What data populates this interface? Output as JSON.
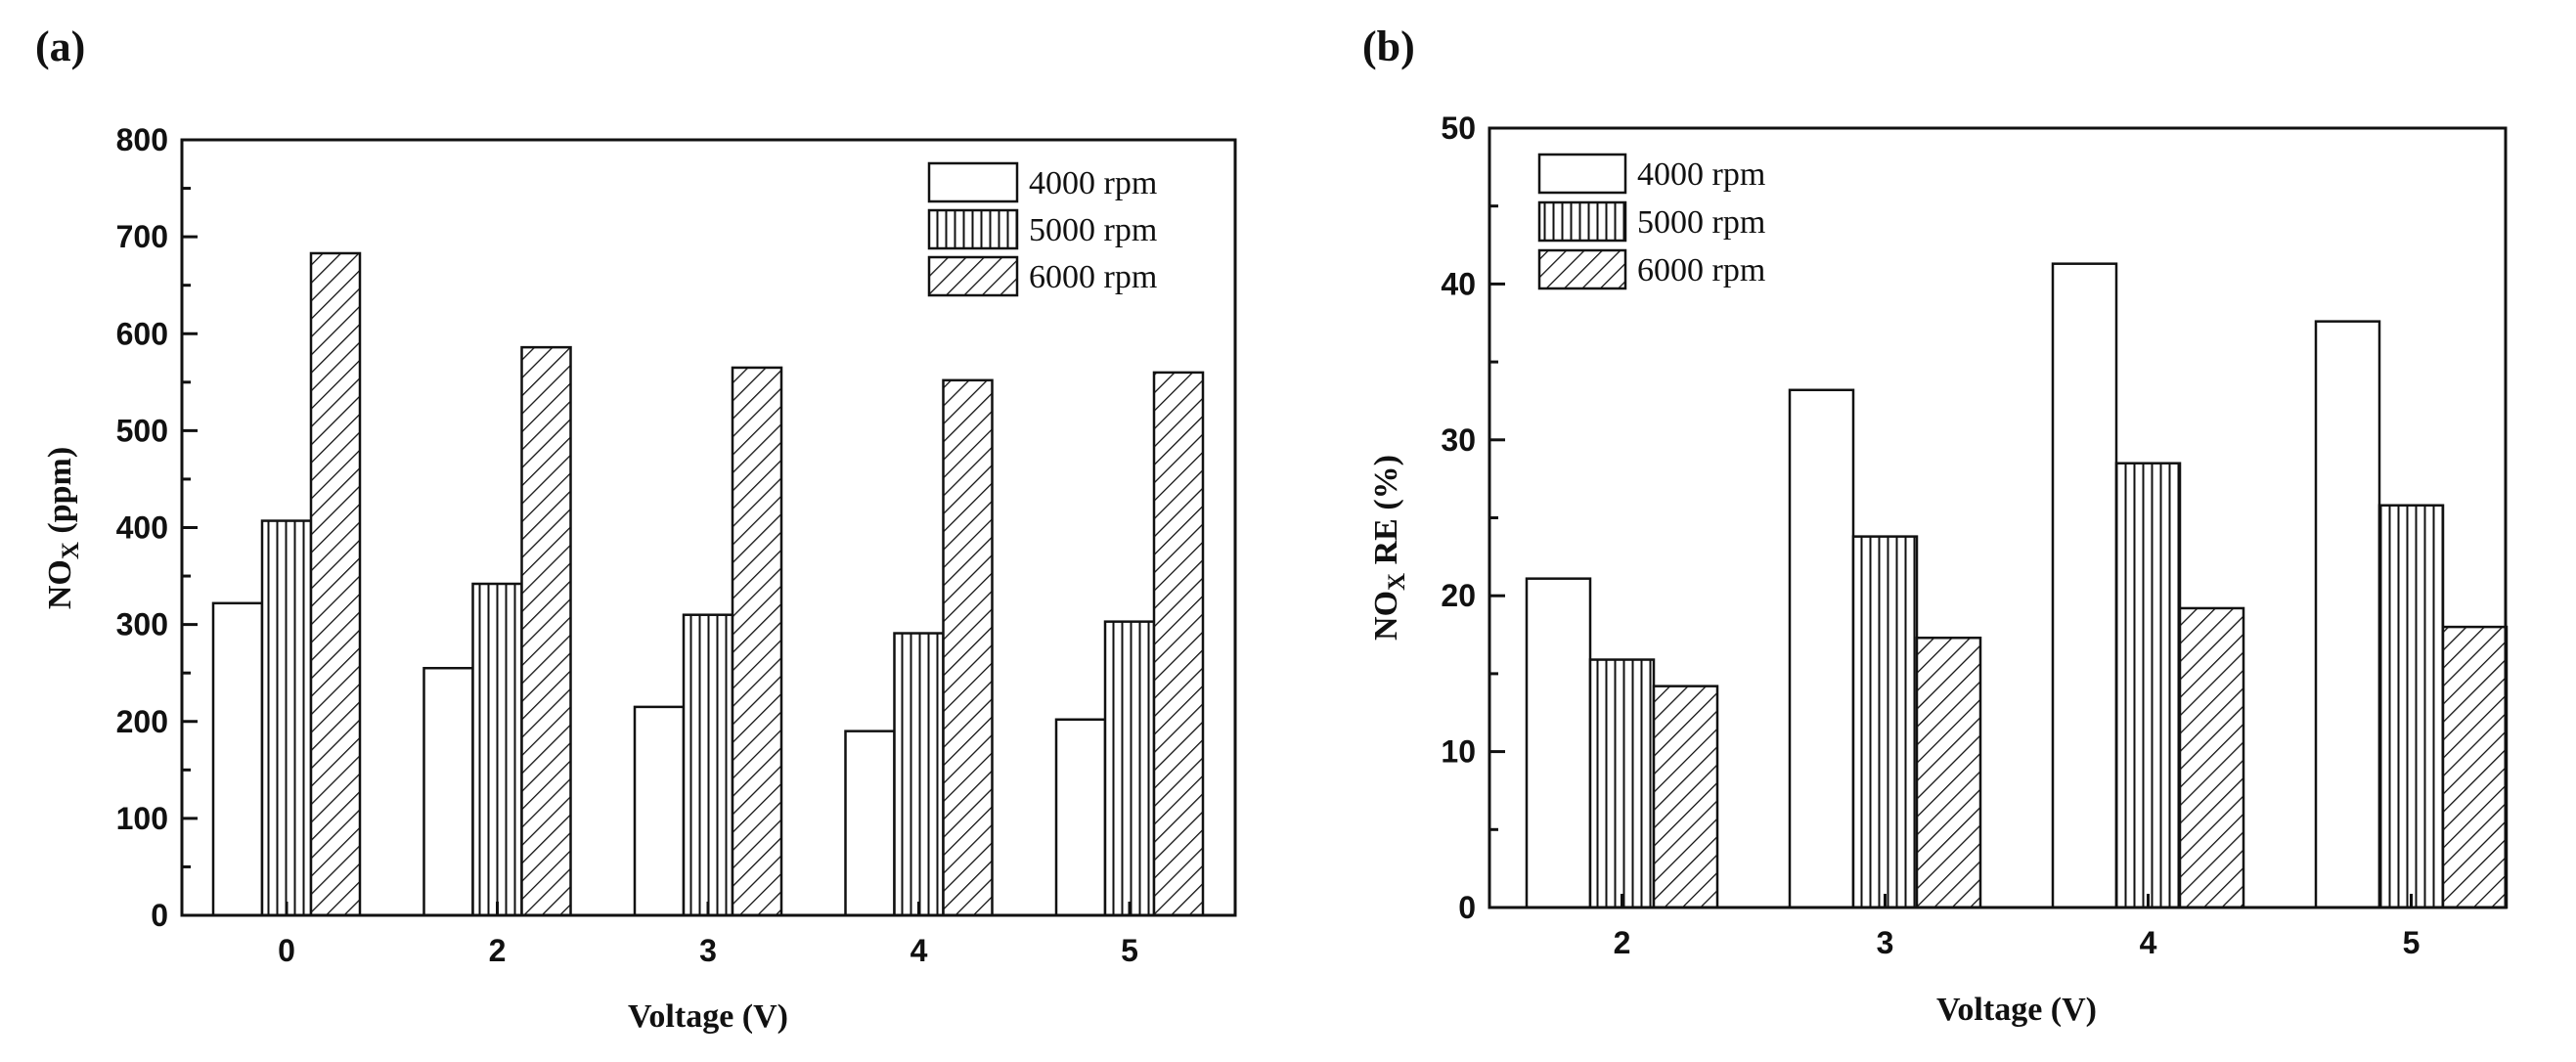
{
  "colors": {
    "ink": "#111111",
    "background": "#ffffff"
  },
  "legend_patterns": [
    "blank",
    "vertical-lines",
    "diagonal-lines"
  ],
  "chart_data": [
    {
      "type": "bar",
      "panel_label": "(a)",
      "title": "",
      "xlabel": "Voltage (V)",
      "ylabel_main": "NO",
      "ylabel_sub": "X",
      "ylabel_rest": " (ppm)",
      "ylim": [
        0,
        800
      ],
      "ytick_step": 100,
      "ytick_labels": [
        "0",
        "100",
        "200",
        "300",
        "400",
        "500",
        "600",
        "700",
        "800"
      ],
      "categories": [
        "0",
        "2",
        "3",
        "4",
        "5"
      ],
      "legend_position": "top-right",
      "series": [
        {
          "name": "4000 rpm",
          "values": [
            322,
            255,
            215,
            190,
            202
          ]
        },
        {
          "name": "5000 rpm",
          "values": [
            407,
            342,
            310,
            291,
            303
          ]
        },
        {
          "name": "6000 rpm",
          "values": [
            683,
            586,
            565,
            552,
            560
          ]
        }
      ]
    },
    {
      "type": "bar",
      "panel_label": "(b)",
      "title": "",
      "xlabel": "Voltage (V)",
      "ylabel_main": "NO",
      "ylabel_sub": "X",
      "ylabel_rest": " RE (%)",
      "ylim": [
        0,
        50
      ],
      "ytick_step": 10,
      "ytick_labels": [
        "0",
        "10",
        "20",
        "30",
        "40",
        "50"
      ],
      "categories": [
        "2",
        "3",
        "4",
        "5"
      ],
      "legend_position": "top-left",
      "series": [
        {
          "name": "4000 rpm",
          "values": [
            21.1,
            33.2,
            41.3,
            37.6
          ]
        },
        {
          "name": "5000 rpm",
          "values": [
            15.9,
            23.8,
            28.5,
            25.8
          ]
        },
        {
          "name": "6000 rpm",
          "values": [
            14.2,
            17.3,
            19.2,
            18.0
          ]
        }
      ]
    }
  ]
}
